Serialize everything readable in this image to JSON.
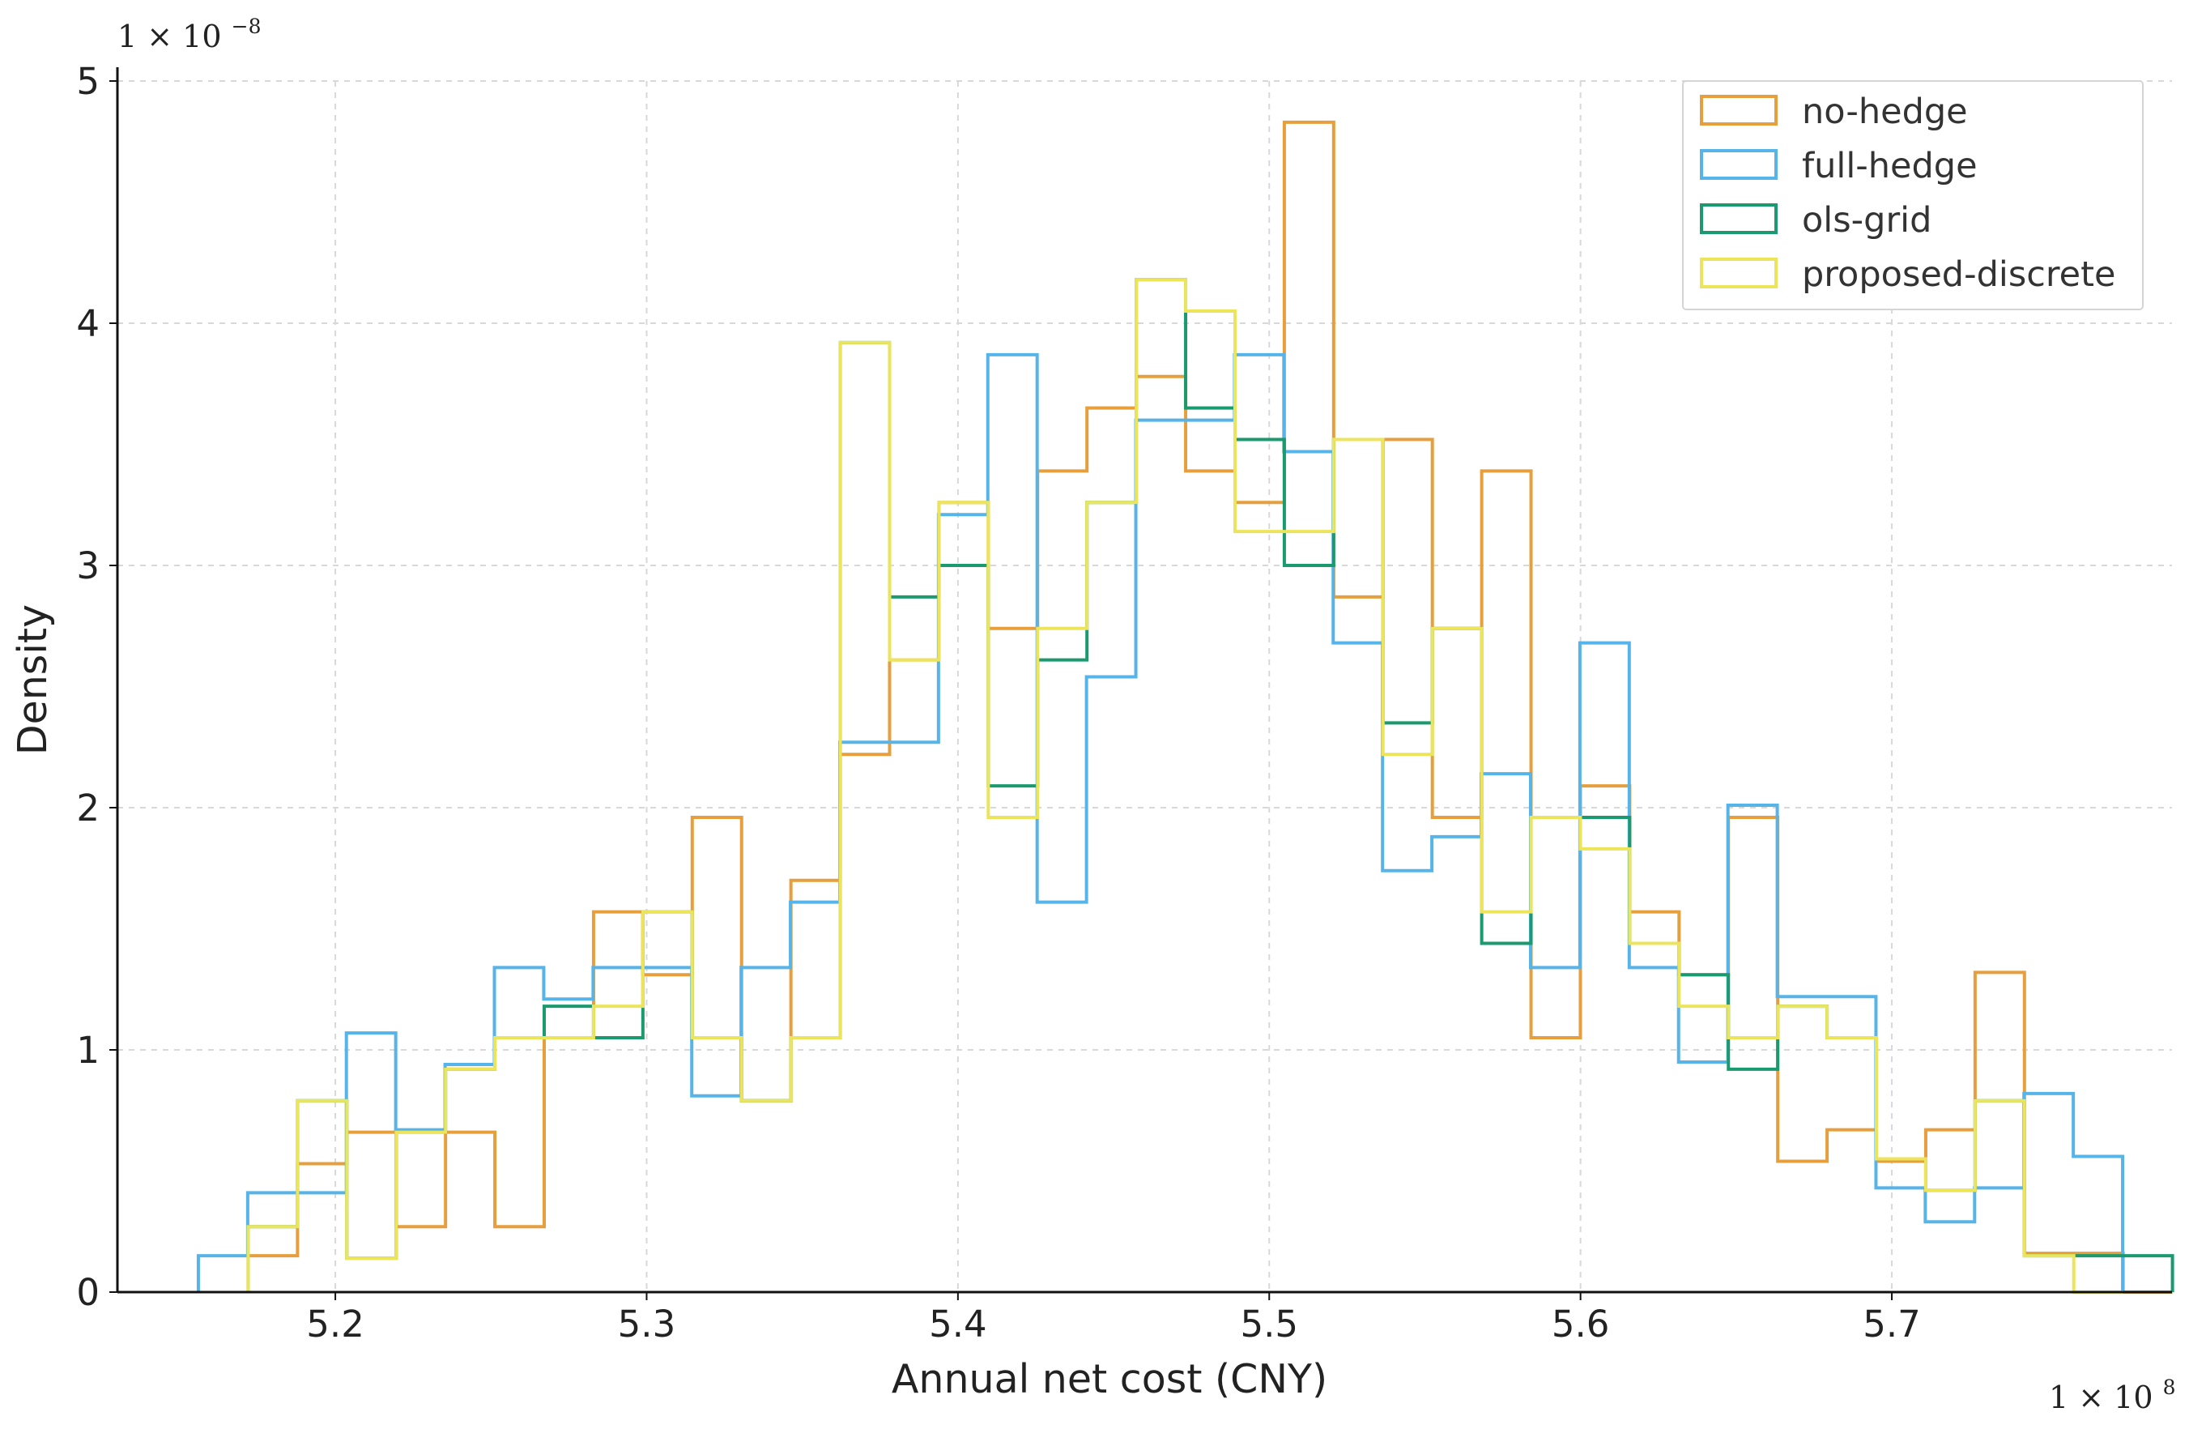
{
  "chart_data": {
    "type": "histogram",
    "title": "",
    "xlabel": "Annual net cost (CNY)",
    "ylabel": "Density",
    "x_scale_label": "1 × 10",
    "x_scale_exponent": "8",
    "y_scale_label": "1 × 10",
    "y_scale_exponent": "−8",
    "xlim": [
      5.13,
      5.79
    ],
    "ylim": [
      0,
      5
    ],
    "grid": true,
    "legend_position": "top-right",
    "x_ticks": [
      {
        "value": 5.2,
        "label": "5.2"
      },
      {
        "value": 5.3,
        "label": "5.3"
      },
      {
        "value": 5.4,
        "label": "5.4"
      },
      {
        "value": 5.5,
        "label": "5.5"
      },
      {
        "value": 5.6,
        "label": "5.6"
      },
      {
        "value": 5.7,
        "label": "5.7"
      }
    ],
    "y_ticks": [
      {
        "value": 0,
        "label": "0"
      },
      {
        "value": 1,
        "label": "1"
      },
      {
        "value": 2,
        "label": "2"
      },
      {
        "value": 3,
        "label": "3"
      },
      {
        "value": 4,
        "label": "4"
      },
      {
        "value": 5,
        "label": "5"
      }
    ],
    "series": [
      {
        "name": "no-hedge",
        "color": "#e69f3c",
        "start": 5.172,
        "bin_width": 0.01585,
        "values": [
          0.15,
          0.53,
          0.66,
          0.27,
          0.66,
          0.27,
          1.05,
          1.57,
          1.31,
          1.96,
          0.79,
          1.7,
          2.22,
          2.61,
          3.26,
          2.74,
          3.39,
          3.65,
          3.78,
          3.39,
          3.26,
          4.83,
          2.87,
          3.52,
          1.96,
          3.39,
          1.05,
          2.09,
          1.57,
          1.31,
          1.96,
          0.54,
          0.67,
          0.54,
          0.67,
          1.32,
          0.16,
          0.16,
          0.0
        ]
      },
      {
        "name": "full-hedge",
        "color": "#56b4e9",
        "start": 5.156,
        "bin_width": 0.01585,
        "values": [
          0.15,
          0.41,
          0.41,
          1.07,
          0.67,
          0.94,
          1.34,
          1.21,
          1.34,
          1.34,
          0.81,
          1.34,
          1.61,
          2.27,
          2.27,
          3.21,
          3.87,
          1.61,
          2.54,
          3.6,
          3.6,
          3.87,
          3.47,
          2.68,
          1.74,
          1.88,
          2.14,
          1.34,
          2.68,
          1.34,
          0.95,
          2.01,
          1.22,
          1.22,
          0.43,
          0.29,
          0.43,
          0.82,
          0.56
        ]
      },
      {
        "name": "ols-grid",
        "color": "#1a9a6e",
        "start": 5.172,
        "bin_width": 0.01585,
        "values": [
          0.27,
          0.79,
          0.14,
          0.66,
          0.92,
          1.05,
          1.18,
          1.05,
          1.57,
          1.05,
          0.79,
          1.05,
          3.92,
          2.87,
          3.0,
          2.09,
          2.61,
          3.26,
          4.18,
          3.65,
          3.52,
          3.0,
          3.52,
          2.35,
          2.74,
          1.44,
          1.96,
          1.96,
          1.44,
          1.31,
          0.92,
          1.18,
          1.05,
          0.55,
          0.42,
          0.79,
          0.15,
          0.15,
          0.15
        ]
      },
      {
        "name": "proposed-discrete",
        "color": "#ece55c",
        "start": 5.172,
        "bin_width": 0.01585,
        "values": [
          0.27,
          0.79,
          0.14,
          0.66,
          0.92,
          1.05,
          1.05,
          1.18,
          1.57,
          1.05,
          0.79,
          1.05,
          3.92,
          2.61,
          3.26,
          1.96,
          2.74,
          3.26,
          4.18,
          4.05,
          3.14,
          3.14,
          3.52,
          2.22,
          2.74,
          1.57,
          1.96,
          1.83,
          1.44,
          1.18,
          1.05,
          1.18,
          1.05,
          0.55,
          0.42,
          0.79,
          0.15,
          0.0
        ]
      }
    ]
  }
}
